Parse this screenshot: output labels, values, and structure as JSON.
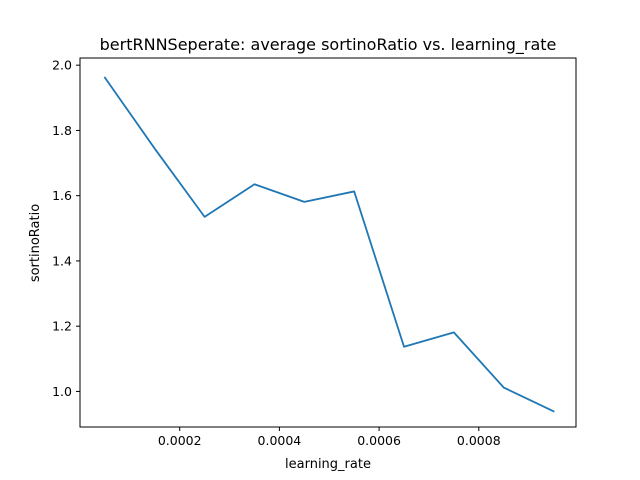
{
  "chart_data": {
    "type": "line",
    "title": "bertRNNSeperate: average sortinoRatio vs. learning_rate",
    "xlabel": "learning_rate",
    "ylabel": "sortinoRatio",
    "xlim": [
      0.0,
      0.000995
    ],
    "ylim": [
      0.891,
      2.022
    ],
    "xticks": [
      0.0002,
      0.0004,
      0.0006,
      0.0008
    ],
    "xtick_labels": [
      "0.0002",
      "0.0004",
      "0.0006",
      "0.0008"
    ],
    "yticks": [
      1.0,
      1.2,
      1.4,
      1.6,
      1.8,
      2.0
    ],
    "ytick_labels": [
      "1.0",
      "1.2",
      "1.4",
      "1.6",
      "1.8",
      "2.0"
    ],
    "grid": false,
    "legend": "none",
    "series": [
      {
        "color": "#1f77b4",
        "x": [
          5e-05,
          0.00015,
          0.00025,
          0.00035,
          0.00045,
          0.00055,
          0.00065,
          0.00075,
          0.00085,
          0.00095
        ],
        "y": [
          1.962,
          1.744,
          1.535,
          1.635,
          1.581,
          1.613,
          1.137,
          1.181,
          1.012,
          0.939
        ]
      }
    ]
  }
}
